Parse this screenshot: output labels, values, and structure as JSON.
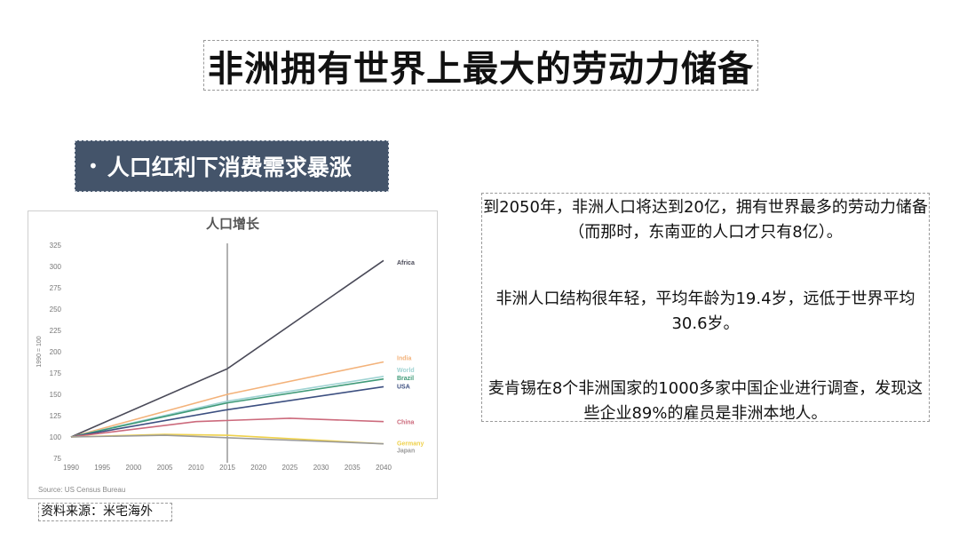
{
  "slide": {
    "title": "非洲拥有世界上最大的劳动力储备",
    "subtitle_bullet": "•",
    "subtitle": "人口红利下消费需求暴涨",
    "source_note": "资料来源：米宅海外"
  },
  "text_panel": {
    "para_1": "到2050年，非洲人口将达到20亿，拥有世界最多的劳动力储备（而那时，东南亚的人口才只有8亿）。",
    "para_2": "非洲人口结构很年轻，平均年龄为19.4岁，远低于世界平均30.6岁。",
    "para_3": "麦肯锡在8个非洲国家的1000多家中国企业进行调查，发现这些企业89%的雇员是非洲本地人。"
  },
  "chart_data": {
    "type": "line",
    "title": "人口增长",
    "ylabel": "1990 = 100",
    "xlabel": "",
    "source": "Source: US Census Bureau",
    "xlim": [
      1990,
      2040
    ],
    "ylim": [
      75,
      325
    ],
    "x_ticks": [
      1990,
      1995,
      2000,
      2005,
      2010,
      2015,
      2020,
      2025,
      2030,
      2035,
      2040
    ],
    "y_ticks": [
      75,
      100,
      125,
      150,
      175,
      200,
      225,
      250,
      275,
      300,
      325
    ],
    "marker_year": 2015,
    "grid": false,
    "legend": "end-of-line labels",
    "series": [
      {
        "name": "Africa",
        "color": "#4a4a58",
        "x": [
          1990,
          2015,
          2040
        ],
        "y": [
          100,
          180,
          307
        ]
      },
      {
        "name": "India",
        "color": "#f3b27a",
        "x": [
          1990,
          2015,
          2040
        ],
        "y": [
          100,
          150,
          188
        ]
      },
      {
        "name": "World",
        "color": "#9fd3d3",
        "x": [
          1990,
          2015,
          2040
        ],
        "y": [
          100,
          142,
          171
        ]
      },
      {
        "name": "Brazil",
        "color": "#3f9a78",
        "x": [
          1990,
          2015,
          2040
        ],
        "y": [
          100,
          140,
          168
        ]
      },
      {
        "name": "USA",
        "color": "#3c4f80",
        "x": [
          1990,
          2015,
          2040
        ],
        "y": [
          100,
          132,
          159
        ]
      },
      {
        "name": "China",
        "color": "#cc6a7c",
        "x": [
          1990,
          2010,
          2025,
          2040
        ],
        "y": [
          100,
          118,
          122,
          118
        ]
      },
      {
        "name": "Germany",
        "color": "#efd14b",
        "x": [
          1990,
          2005,
          2015,
          2040
        ],
        "y": [
          100,
          103,
          102,
          92
        ]
      },
      {
        "name": "Japan",
        "color": "#9b9b9b",
        "x": [
          1990,
          2005,
          2040
        ],
        "y": [
          100,
          102,
          92
        ]
      }
    ]
  }
}
